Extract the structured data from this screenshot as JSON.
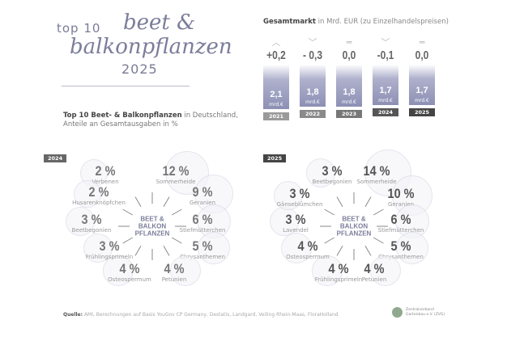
{
  "header": {
    "top10": "top 10",
    "script1": "beet &",
    "script2": "balkonpflanzen",
    "year": "2025"
  },
  "subtitle": {
    "bold": "Top 10 Beet- & Balkonpflanzen",
    "rest": " in Deutschland,",
    "line2": "Anteile an Gesamtausgaben in %"
  },
  "market": {
    "title_bold": "Gesamtmarkt",
    "title_rest": " in Mrd. EUR (zu Einzelhandelspreisen)",
    "unit": "mrd.€"
  },
  "chart_data": [
    {
      "type": "bar",
      "title": "Gesamtmarkt in Mrd. EUR (zu Einzelhandelspreisen)",
      "categories": [
        "2021",
        "2022",
        "2023",
        "2024",
        "2025"
      ],
      "values": [
        2.1,
        1.8,
        1.8,
        1.7,
        1.7
      ],
      "labels": [
        "2,1",
        "1,8",
        "1,8",
        "1,7",
        "1,7"
      ],
      "changes": [
        "+0,2",
        "- 0,3",
        "0,0",
        "-0,1",
        "0,0"
      ],
      "trend": [
        "up",
        "down",
        "flat",
        "down",
        "flat"
      ],
      "year_colors": [
        "#9a9a9a",
        "#8a8a8a",
        "#777777",
        "#555555",
        "#444444"
      ]
    },
    {
      "type": "pie",
      "year": "2024",
      "center": [
        "BEET &",
        "BALKON",
        "PFLANZEN"
      ],
      "categories": [
        "Verbenen",
        "Sommerheide",
        "Geranien",
        "Stiefmütterchen",
        "Chrysanthemen",
        "Petunien",
        "Osteospermum",
        "Frühlingsprimeln",
        "Beetbegonien",
        "Husarenknöpfchen"
      ],
      "values": [
        2,
        12,
        9,
        6,
        5,
        4,
        4,
        3,
        3,
        2
      ],
      "labels": [
        "2 %",
        "12 %",
        "9 %",
        "6 %",
        "5 %",
        "4 %",
        "4 %",
        "3 %",
        "3 %",
        "2 %"
      ]
    },
    {
      "type": "pie",
      "year": "2025",
      "center": [
        "BEET &",
        "BALKON",
        "PFLANZEN"
      ],
      "categories": [
        "Beetbegonien",
        "Sommerheide",
        "Geranien",
        "Stiefmütterchen",
        "Chrysanthemen",
        "Petunien",
        "Frühlingsprimeln",
        "Osteospermum",
        "Lavendel",
        "Gänseblümchen"
      ],
      "values": [
        3,
        14,
        10,
        6,
        5,
        4,
        4,
        4,
        3,
        3
      ],
      "labels": [
        "3 %",
        "14 %",
        "10 %",
        "6 %",
        "5 %",
        "4 %",
        "4 %",
        "4 %",
        "3 %",
        "3 %"
      ]
    }
  ],
  "source": {
    "bold": "Quelle:",
    "rest": " AMI, Berechnungen auf Basis YouGov CP Germany, Destatis, Landgard, Veiling Rhein-Maas, FloraHolland"
  },
  "logo": {
    "line1": "Zentralverband",
    "line2": "Gartenbau e.V. (ZVG)"
  }
}
